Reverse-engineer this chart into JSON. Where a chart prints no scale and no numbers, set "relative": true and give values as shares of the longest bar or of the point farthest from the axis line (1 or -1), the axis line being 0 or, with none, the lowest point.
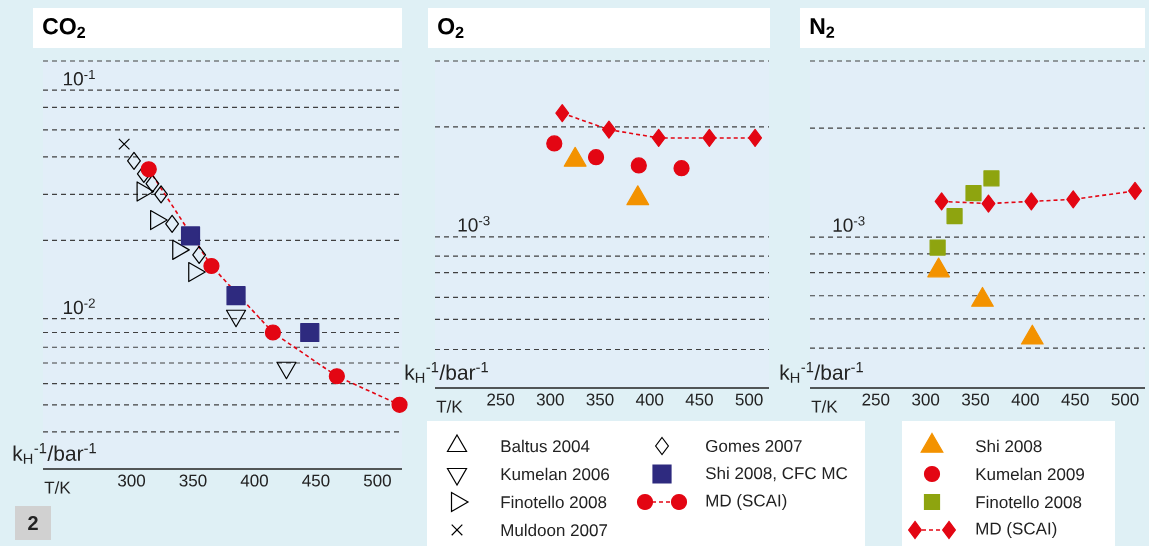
{
  "chart_data": [
    {
      "type": "scatter",
      "title": "CO$_{2}$",
      "xlabel": "T/K",
      "ylabel": "k$_{H}$$^{-1}$/bar$^{-1}$",
      "log": "y",
      "grid": "y",
      "legend": "bottom right",
      "xlim": [
        228,
        520
      ],
      "ylim": [
        0.0022,
        0.134
      ],
      "xticks": [
        300,
        350,
        400,
        450,
        500
      ],
      "yticks": [
        {
          "value": 0.0032,
          "label": null
        },
        {
          "value": 0.0042,
          "label": null
        },
        {
          "value": 0.0052,
          "label": null
        },
        {
          "value": 0.0064,
          "label": null
        },
        {
          "value": 0.0075,
          "label": null
        },
        {
          "value": 0.0087,
          "label": null
        },
        {
          "value": 0.01,
          "label": "10$^{-2}$"
        },
        {
          "value": 0.022,
          "label": null
        },
        {
          "value": 0.035,
          "label": null
        },
        {
          "value": 0.051,
          "label": null
        },
        {
          "value": 0.067,
          "label": null
        },
        {
          "value": 0.084,
          "label": null
        },
        {
          "value": 0.1,
          "label": "10$^{-1}$"
        },
        {
          "value": 0.134,
          "label": null
        }
      ],
      "annotations": [
        "2"
      ],
      "series": [
        {
          "name": "Baltus 2004",
          "color": "#000000",
          "marker": "triangle"
        },
        {
          "name": "Kumelan 2006",
          "color": "#000000",
          "marker": "triangle",
          "x": [
            385,
            426
          ],
          "values": [
            0.0103,
            0.0061
          ]
        },
        {
          "name": "Finotello 2008",
          "color": "#000000",
          "marker": "triangle",
          "x": [
            309,
            320,
            338,
            351
          ],
          "values": [
            0.036,
            0.027,
            0.02,
            0.016
          ]
        },
        {
          "name": "Muldoon 2007",
          "color": "#000000",
          "marker": "cross",
          "x": [
            294
          ],
          "values": [
            0.058
          ]
        },
        {
          "name": "Gomes 2007",
          "color": "#000000",
          "marker": "diamond",
          "x": [
            302,
            310,
            317,
            324,
            333,
            355
          ],
          "values": [
            0.049,
            0.043,
            0.039,
            0.035,
            0.026,
            0.019
          ]
        },
        {
          "name": "Shi 2008, CFC MC",
          "color": "#2e2a7f",
          "marker": "square",
          "x": [
            348,
            385,
            445
          ],
          "values": [
            0.023,
            0.0126,
            0.0087
          ]
        },
        {
          "name": "MD (SCAI)",
          "color": "#e30613",
          "marker": "circle",
          "type": "line",
          "line_style": "dashed",
          "x": [
            314,
            365,
            415,
            467,
            518
          ],
          "values": [
            0.045,
            0.017,
            0.0087,
            0.0056,
            0.0042
          ]
        }
      ]
    },
    {
      "type": "scatter",
      "title": "O$_{2}$",
      "xlabel": "T/K",
      "ylabel": "k$_{H}$$^{-1}$/bar$^{-1}$",
      "relative": true,
      "xlim": [
        184,
        520
      ],
      "xticks": [
        250,
        300,
        350,
        400,
        450,
        500
      ],
      "annotations": [
        {
          "text": "10$^{-3}$",
          "y": 0.55
        }
      ],
      "ref_lines": [
        {
          "axis": "y",
          "value": 0.14,
          "line_style": "dashed"
        },
        {
          "axis": "y",
          "value": 0.25,
          "line_style": "dashed"
        },
        {
          "axis": "y",
          "value": 0.33,
          "line_style": "dashed"
        },
        {
          "axis": "y",
          "value": 0.42,
          "line_style": "dashed"
        },
        {
          "axis": "y",
          "value": 0.48,
          "line_style": "dashed"
        },
        {
          "axis": "y",
          "value": 0.55,
          "line_style": "dashed"
        },
        {
          "axis": "y",
          "value": 0.95,
          "line_style": "dashed"
        },
        {
          "axis": "y",
          "value": 1.19,
          "line_style": "dashed"
        }
      ],
      "series": [
        {
          "color": "#f39200",
          "marker": "triangle",
          "x": [
            325,
            388
          ],
          "values": [
            0.83,
            0.69
          ]
        },
        {
          "name": "Kumelan 2009",
          "color": "#e30613",
          "marker": "circle",
          "x": [
            304,
            346,
            389,
            432
          ],
          "values": [
            0.89,
            0.84,
            0.81,
            0.8
          ]
        },
        {
          "color": "#e30613",
          "marker": "diamond",
          "type": "line",
          "line_style": "dashed",
          "x": [
            312,
            359,
            409,
            460,
            506
          ],
          "values": [
            1,
            0.94,
            0.91,
            0.91,
            0.91
          ]
        }
      ]
    },
    {
      "type": "scatter",
      "title": "N$_{2}$",
      "xlabel": "T/K",
      "ylabel": "k$_{H}$$^{-1}$/bar$^{-1}$",
      "relative": true,
      "legend": "bottom",
      "xlim": [
        184,
        520
      ],
      "xticks": [
        250,
        300,
        350,
        400,
        450,
        500
      ],
      "annotations": [
        {
          "text": "10$^{-3}$",
          "y": 0.72
        }
      ],
      "ref_lines": [
        {
          "axis": "y",
          "value": 0.19,
          "line_style": "dashed"
        },
        {
          "axis": "y",
          "value": 0.33,
          "line_style": "dashed"
        },
        {
          "axis": "y",
          "value": 0.44,
          "line_style": "dashed"
        },
        {
          "axis": "y",
          "value": 0.55,
          "line_style": "dashed"
        },
        {
          "axis": "y",
          "value": 0.64,
          "line_style": "dashed"
        },
        {
          "axis": "y",
          "value": 0.72,
          "line_style": "dashed"
        },
        {
          "axis": "y",
          "value": 1.24,
          "line_style": "dashed"
        },
        {
          "axis": "y",
          "value": 1.56,
          "line_style": "dashed"
        }
      ],
      "series": [
        {
          "name": "Shi 2008",
          "color": "#f39200",
          "marker": "triangle",
          "x": [
            313,
            357,
            407
          ],
          "values": [
            0.56,
            0.42,
            0.24
          ]
        },
        {
          "name": "Finotello 2008",
          "color": "#8ea40f",
          "marker": "square",
          "x": [
            312,
            329,
            348,
            366
          ],
          "values": [
            0.67,
            0.82,
            0.93,
            1
          ]
        },
        {
          "name": "MD (SCAI)",
          "color": "#e30613",
          "marker": "diamond",
          "type": "line",
          "line_style": "dashed",
          "x": [
            316,
            363,
            406,
            448,
            510
          ],
          "values": [
            0.89,
            0.88,
            0.89,
            0.9,
            0.94
          ]
        }
      ]
    }
  ]
}
